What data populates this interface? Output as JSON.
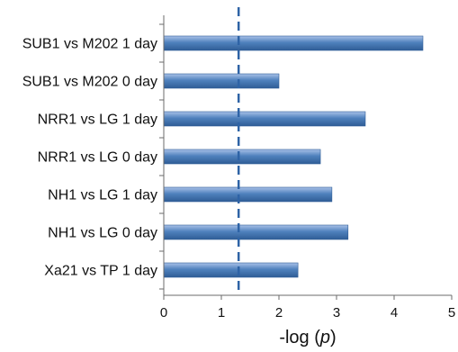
{
  "chart_data": {
    "type": "bar",
    "orientation": "horizontal",
    "categories": [
      "SUB1 vs M202 1 day",
      "SUB1 vs M202 0 day",
      "NRR1 vs LG 1 day",
      "NRR1 vs LG 0 day",
      "NH1 vs LG 1 day",
      "NH1 vs LG 0 day",
      "Xa21 vs TP 1 day"
    ],
    "values": [
      4.5,
      2.0,
      3.5,
      2.72,
      2.92,
      3.2,
      2.33
    ],
    "xlim": [
      0,
      5
    ],
    "xticks": [
      "0",
      "1",
      "2",
      "3",
      "4",
      "5"
    ],
    "xlabel_prefix": "-log (",
    "xlabel_var": "p",
    "xlabel_suffix": ")",
    "reference_line": {
      "value": 1.3,
      "style": "dashed"
    },
    "grid": false,
    "colors": {
      "bar_light": "#a9c2e8",
      "bar_mid": "#4f81bd",
      "bar_dark": "#2f5d96",
      "reference_line": "#2e63a6",
      "axis": "#6b6b6b"
    }
  }
}
